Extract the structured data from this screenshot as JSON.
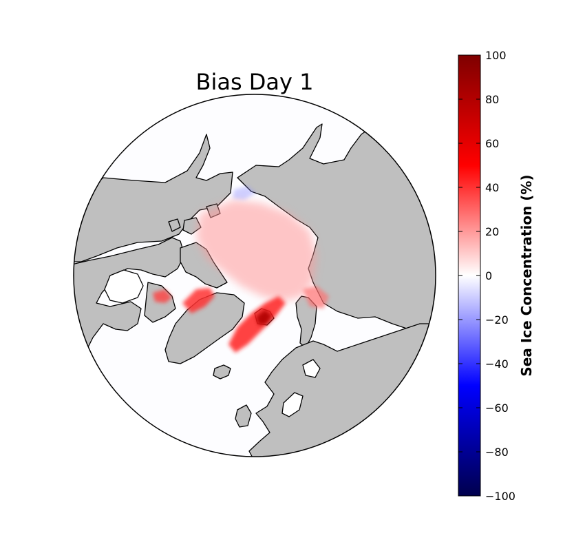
{
  "title": "Bias Day 1",
  "colorbar": {
    "label": "Sea Ice Concentration (%)",
    "min": -100,
    "max": 100,
    "ticks": [
      "100",
      "80",
      "60",
      "40",
      "20",
      "0",
      "−20",
      "−40",
      "−60",
      "−80",
      "−100"
    ],
    "colormap": "seismic",
    "colors": {
      "top": "#7f0000",
      "upper": "#ff0000",
      "middle": "#ffffff",
      "lower": "#0000ff",
      "bottom": "#00004d"
    }
  },
  "map": {
    "projection": "north-polar-stereographic",
    "land_color": "#bfbfbf",
    "ocean_color": "#ffffff",
    "coastline_color": "#000000"
  }
}
